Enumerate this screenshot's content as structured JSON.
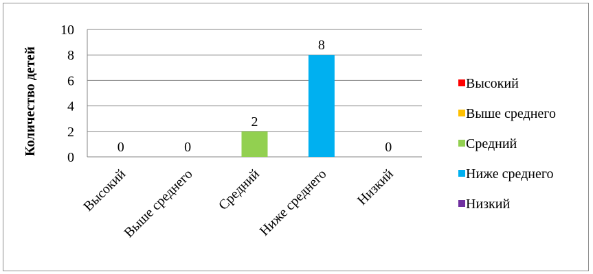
{
  "chart_data": {
    "type": "bar",
    "title": "",
    "xlabel": "",
    "ylabel": "Количество детей",
    "ylim": [
      0,
      10
    ],
    "yticks": [
      0,
      2,
      4,
      6,
      8,
      10
    ],
    "grid": true,
    "legend_position": "right",
    "categories": [
      "Высокий",
      "Выше среднего",
      "Средний",
      "Ниже среднего",
      "Низкий"
    ],
    "values": [
      0,
      0,
      2,
      8,
      0
    ],
    "colors": [
      "#ff0000",
      "#ffc000",
      "#92d050",
      "#00b0f0",
      "#7030a0"
    ],
    "legend": [
      "Высокий",
      "Выше среднего",
      "Средний",
      "Ниже среднего",
      "Низкий"
    ]
  }
}
